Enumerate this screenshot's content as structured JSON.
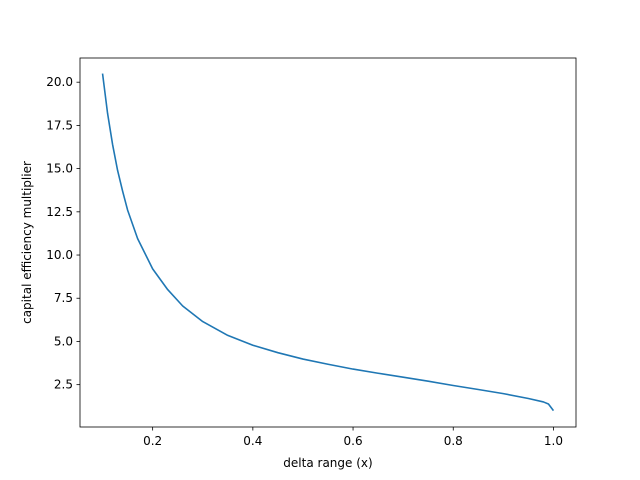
{
  "chart_data": {
    "type": "line",
    "title": "",
    "xlabel": "delta range (x)",
    "ylabel": "capital efficiency multiplier",
    "xlim": [
      0.055,
      1.045
    ],
    "ylim": [
      0.05,
      21.4
    ],
    "grid": false,
    "legend": "none",
    "x_ticks": [
      0.2,
      0.4,
      0.6,
      0.8,
      1.0
    ],
    "x_tick_labels": [
      "0.2",
      "0.4",
      "0.6",
      "0.8",
      "1.0"
    ],
    "y_ticks": [
      2.5,
      5.0,
      7.5,
      10.0,
      12.5,
      15.0,
      17.5,
      20.0
    ],
    "y_tick_labels": [
      "2.5",
      "5.0",
      "7.5",
      "10.0",
      "12.5",
      "15.0",
      "17.5",
      "20.0"
    ],
    "series": [
      {
        "color": "#1f77b4",
        "x": [
          0.1,
          0.11,
          0.12,
          0.13,
          0.14,
          0.15,
          0.17,
          0.2,
          0.23,
          0.26,
          0.3,
          0.35,
          0.4,
          0.45,
          0.5,
          0.55,
          0.6,
          0.65,
          0.7,
          0.75,
          0.8,
          0.85,
          0.9,
          0.95,
          0.98,
          0.99,
          1.0
        ],
        "y": [
          20.5,
          18.2,
          16.4,
          14.9,
          13.7,
          12.6,
          10.95,
          9.2,
          8.0,
          7.05,
          6.15,
          5.35,
          4.78,
          4.35,
          3.98,
          3.68,
          3.4,
          3.16,
          2.93,
          2.7,
          2.45,
          2.22,
          1.98,
          1.7,
          1.5,
          1.38,
          1.0
        ]
      }
    ]
  }
}
